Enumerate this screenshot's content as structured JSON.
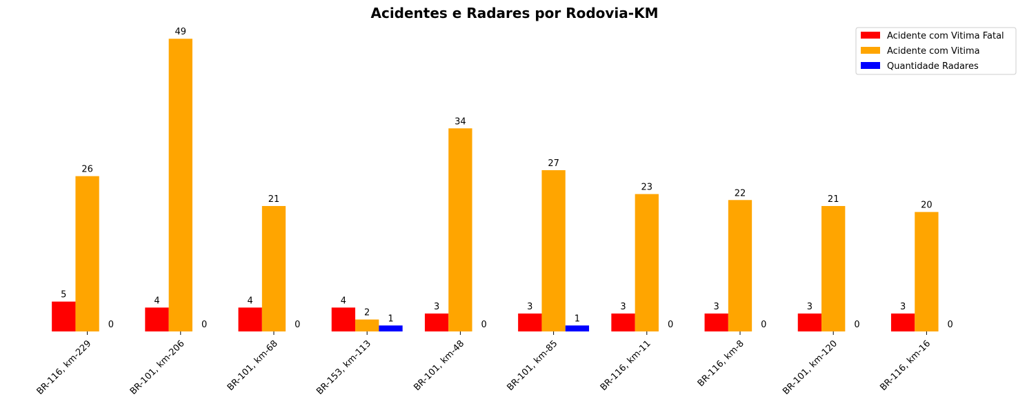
{
  "chart_data": {
    "type": "bar",
    "title": "Acidentes e Radares por Rodovia-KM",
    "xlabel": "",
    "ylabel": "",
    "categories": [
      "BR-116, km-229",
      "BR-101, km-206",
      "BR-101, km-68",
      "BR-153, km-113",
      "BR-101, km-48",
      "BR-101, km-85",
      "BR-116, km-11",
      "BR-116, km-8",
      "BR-101, km-120",
      "BR-116, km-16"
    ],
    "series": [
      {
        "name": "Acidente com Vitima Fatal",
        "color": "#ff0000",
        "values": [
          5,
          4,
          4,
          4,
          3,
          3,
          3,
          3,
          3,
          3
        ]
      },
      {
        "name": "Acidente com Vitima",
        "color": "#ffa500",
        "values": [
          26,
          49,
          21,
          2,
          34,
          27,
          23,
          22,
          21,
          20
        ]
      },
      {
        "name": "Quantidade Radares",
        "color": "#0000ff",
        "values": [
          0,
          0,
          0,
          1,
          0,
          1,
          0,
          0,
          0,
          0
        ]
      }
    ],
    "ylim": [
      0,
      51.45
    ],
    "grid": false,
    "legend_position": "top-right",
    "x_tick_rotation": 45
  }
}
